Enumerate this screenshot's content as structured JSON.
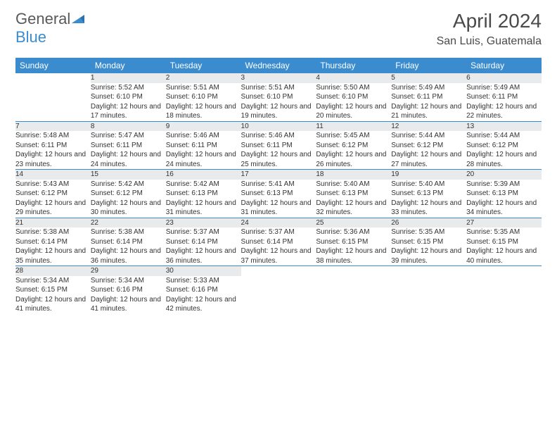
{
  "brand": {
    "name_a": "General",
    "name_b": "Blue"
  },
  "title": "April 2024",
  "location": "San Luis, Guatemala",
  "colors": {
    "accent": "#3b8ccf",
    "dow_text": "#ffffff",
    "daynum_bg": "#e9eaeb",
    "text": "#333333",
    "logo_gray": "#58595b",
    "background": "#ffffff"
  },
  "dow": [
    "Sunday",
    "Monday",
    "Tuesday",
    "Wednesday",
    "Thursday",
    "Friday",
    "Saturday"
  ],
  "days": [
    {
      "n": 1,
      "sr": "5:52 AM",
      "ss": "6:10 PM",
      "dm": 17
    },
    {
      "n": 2,
      "sr": "5:51 AM",
      "ss": "6:10 PM",
      "dm": 18
    },
    {
      "n": 3,
      "sr": "5:51 AM",
      "ss": "6:10 PM",
      "dm": 19
    },
    {
      "n": 4,
      "sr": "5:50 AM",
      "ss": "6:10 PM",
      "dm": 20
    },
    {
      "n": 5,
      "sr": "5:49 AM",
      "ss": "6:11 PM",
      "dm": 21
    },
    {
      "n": 6,
      "sr": "5:49 AM",
      "ss": "6:11 PM",
      "dm": 22
    },
    {
      "n": 7,
      "sr": "5:48 AM",
      "ss": "6:11 PM",
      "dm": 23
    },
    {
      "n": 8,
      "sr": "5:47 AM",
      "ss": "6:11 PM",
      "dm": 24
    },
    {
      "n": 9,
      "sr": "5:46 AM",
      "ss": "6:11 PM",
      "dm": 24
    },
    {
      "n": 10,
      "sr": "5:46 AM",
      "ss": "6:11 PM",
      "dm": 25
    },
    {
      "n": 11,
      "sr": "5:45 AM",
      "ss": "6:12 PM",
      "dm": 26
    },
    {
      "n": 12,
      "sr": "5:44 AM",
      "ss": "6:12 PM",
      "dm": 27
    },
    {
      "n": 13,
      "sr": "5:44 AM",
      "ss": "6:12 PM",
      "dm": 28
    },
    {
      "n": 14,
      "sr": "5:43 AM",
      "ss": "6:12 PM",
      "dm": 29
    },
    {
      "n": 15,
      "sr": "5:42 AM",
      "ss": "6:12 PM",
      "dm": 30
    },
    {
      "n": 16,
      "sr": "5:42 AM",
      "ss": "6:13 PM",
      "dm": 31
    },
    {
      "n": 17,
      "sr": "5:41 AM",
      "ss": "6:13 PM",
      "dm": 31
    },
    {
      "n": 18,
      "sr": "5:40 AM",
      "ss": "6:13 PM",
      "dm": 32
    },
    {
      "n": 19,
      "sr": "5:40 AM",
      "ss": "6:13 PM",
      "dm": 33
    },
    {
      "n": 20,
      "sr": "5:39 AM",
      "ss": "6:13 PM",
      "dm": 34
    },
    {
      "n": 21,
      "sr": "5:38 AM",
      "ss": "6:14 PM",
      "dm": 35
    },
    {
      "n": 22,
      "sr": "5:38 AM",
      "ss": "6:14 PM",
      "dm": 36
    },
    {
      "n": 23,
      "sr": "5:37 AM",
      "ss": "6:14 PM",
      "dm": 36
    },
    {
      "n": 24,
      "sr": "5:37 AM",
      "ss": "6:14 PM",
      "dm": 37
    },
    {
      "n": 25,
      "sr": "5:36 AM",
      "ss": "6:15 PM",
      "dm": 38
    },
    {
      "n": 26,
      "sr": "5:35 AM",
      "ss": "6:15 PM",
      "dm": 39
    },
    {
      "n": 27,
      "sr": "5:35 AM",
      "ss": "6:15 PM",
      "dm": 40
    },
    {
      "n": 28,
      "sr": "5:34 AM",
      "ss": "6:15 PM",
      "dm": 41
    },
    {
      "n": 29,
      "sr": "5:34 AM",
      "ss": "6:16 PM",
      "dm": 41
    },
    {
      "n": 30,
      "sr": "5:33 AM",
      "ss": "6:16 PM",
      "dm": 42
    }
  ],
  "labels": {
    "sunrise": "Sunrise:",
    "sunset": "Sunset:",
    "daylight_prefix": "Daylight: 12 hours and",
    "daylight_suffix": "minutes."
  },
  "layout": {
    "first_weekday_offset": 1,
    "weeks": 5
  }
}
